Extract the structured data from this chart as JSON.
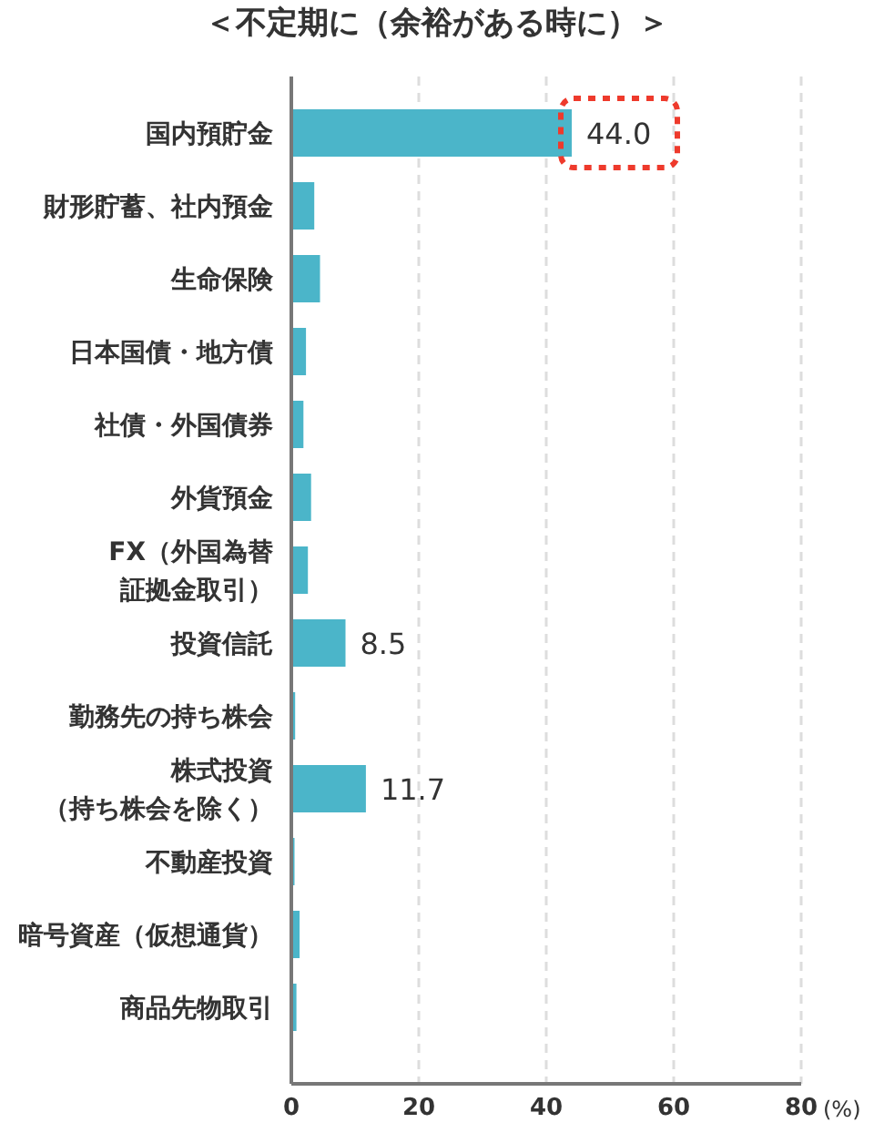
{
  "chart_data": {
    "type": "bar",
    "orientation": "horizontal",
    "title": "＜不定期に（余裕がある時に）＞",
    "xlabel": "(%)",
    "categories": [
      "国内預貯金",
      "財形貯蓄、社内預金",
      "生命保険",
      "日本国債・地方債",
      "社債・外国債券",
      "外貨預金",
      "FX（外国為替証拠金取引）",
      "投資信託",
      "勤務先の持ち株会",
      "株式投資（持ち株会を除く）",
      "不動産投資",
      "暗号資産（仮想通貨）",
      "商品先物取引"
    ],
    "values": [
      44.0,
      3.6,
      4.5,
      2.3,
      1.9,
      3.1,
      2.6,
      8.5,
      0.6,
      11.7,
      0.5,
      1.3,
      0.8
    ],
    "value_labels": [
      "44.0",
      null,
      null,
      null,
      null,
      null,
      null,
      "8.5",
      null,
      "11.7",
      null,
      null,
      null
    ],
    "color": "#4bb5c9",
    "xlim": [
      0,
      80
    ],
    "xticks": [
      0,
      20,
      40,
      60,
      80
    ],
    "grid": "x"
  }
}
